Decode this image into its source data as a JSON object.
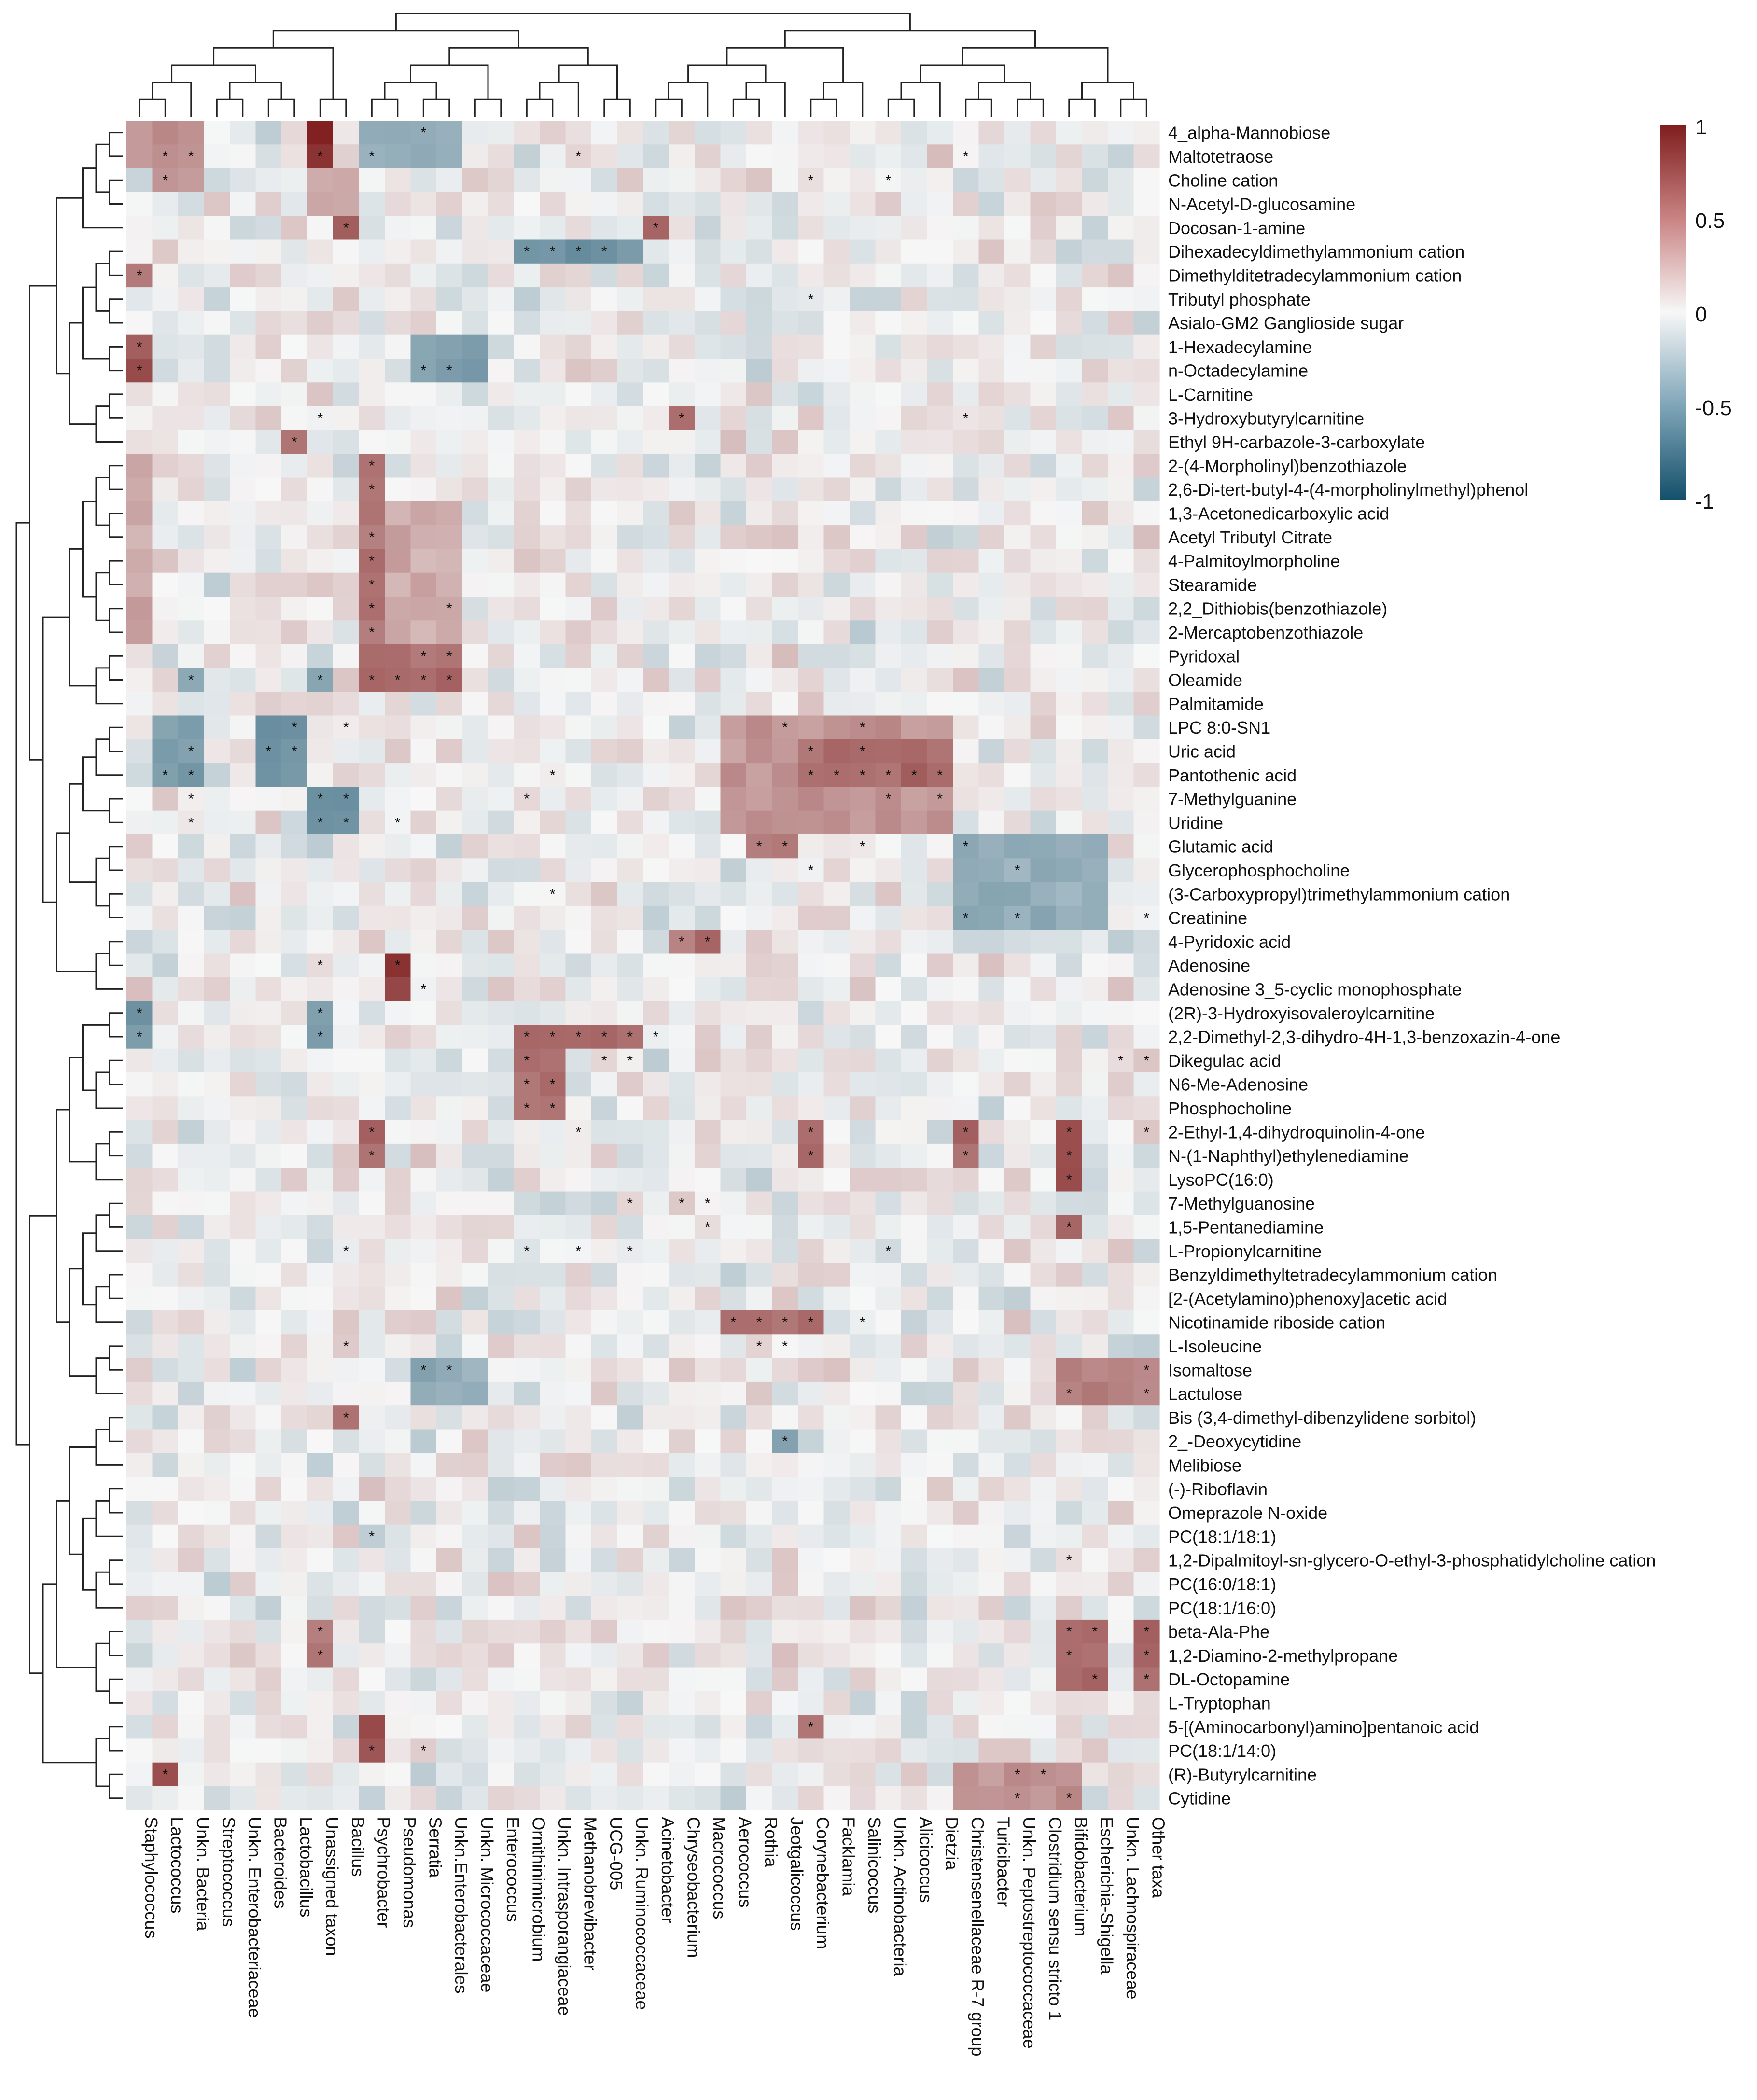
{
  "chart_data": {
    "type": "heatmap",
    "title": "",
    "xlabel": "",
    "ylabel": "",
    "columns": [
      "Staphylococcus",
      "Lactococcus",
      "Unkn. Bacteria",
      "Streptococcus",
      "Unkn. Enterobacteriaceae",
      "Bacteroides",
      "Lactobacillus",
      "Unassigned taxon",
      "Bacillus",
      "Psychrobacter",
      "Pseudomonas",
      "Serratia",
      "Unkn.Enterobacterales",
      "Unkn. Micrococcaceae",
      "Enterococcus",
      "Ornithinimicrobium",
      "Unkn. Intrasporangiaceae",
      "Methanobrevibacter",
      "UCG-005",
      "Unkn. Ruminococcaceae",
      "Acinetobacter",
      "Chryseobacterium",
      "Macrococcus",
      "Aerococcus",
      "Rothia",
      "Jeotgalicoccus",
      "Corynebacterium",
      "Facklamia",
      "Salinicoccus",
      "Unkn. Actinobacteria",
      "Alicicoccus",
      "Dietzia",
      "Christensenellaceae R-7 group",
      "Turicibacter",
      "Unkn. Peptostreptococcaceae",
      "Clostridium sensu stricto 1",
      "Bifidobacterium",
      "Escherichia-Shigella",
      "Unkn. Lachnospiraceae",
      "Other taxa"
    ],
    "rows": [
      "4_alpha-Mannobiose",
      "Maltotetraose",
      "Choline cation",
      "N-Acetyl-D-glucosamine",
      "Docosan-1-amine",
      "Dihexadecyldimethylammonium cation",
      "Dimethylditetradecylammonium cation",
      "Tributyl phosphate",
      "Asialo-GM2 Ganglioside sugar",
      "1-Hexadecylamine",
      "n-Octadecylamine",
      "L-Carnitine",
      "3-Hydroxybutyrylcarnitine",
      "Ethyl 9H-carbazole-3-carboxylate",
      "2-(4-Morpholinyl)benzothiazole",
      "2,6-Di-tert-butyl-4-(4-morpholinylmethyl)phenol",
      "1,3-Acetonedicarboxylic acid",
      "Acetyl Tributyl Citrate",
      "4-Palmitoylmorpholine",
      "Stearamide",
      "2,2_Dithiobis(benzothiazole)",
      "2-Mercaptobenzothiazole",
      "Pyridoxal",
      "Oleamide",
      "Palmitamide",
      "LPC 8:0-SN1",
      "Uric acid",
      "Pantothenic acid",
      "7-Methylguanine",
      "Uridine",
      "Glutamic acid",
      "Glycerophosphocholine",
      "(3-Carboxypropyl)trimethylammonium cation",
      "Creatinine",
      "4-Pyridoxic acid",
      "Adenosine",
      "Adenosine 3_5-cyclic monophosphate",
      "(2R)-3-Hydroxyisovaleroylcarnitine",
      "2,2-Dimethyl-2,3-dihydro-4H-1,3-benzoxazin-4-one",
      "Dikegulac acid",
      "N6-Me-Adenosine",
      "Phosphocholine",
      "2-Ethyl-1,4-dihydroquinolin-4-one",
      "N-(1-Naphthyl)ethylenediamine",
      "LysoPC(16:0)",
      "7-Methylguanosine",
      "1,5-Pentanediamine",
      "L-Propionylcarnitine",
      "Benzyldimethyltetradecylammonium cation",
      "[2-(Acetylamino)phenoxy]acetic acid",
      "Nicotinamide riboside cation",
      "L-Isoleucine",
      "Isomaltose",
      "Lactulose",
      "Bis (3,4-dimethyl-dibenzylidene sorbitol)",
      "2_-Deoxycytidine",
      "Melibiose",
      "(-)-Riboflavin",
      "Omeprazole N-oxide",
      "PC(18:1/18:1)",
      "1,2-Dipalmitoyl-sn-glycero-O-ethyl-3-phosphatidylcholine cation",
      "PC(16:0/18:1)",
      "PC(18:1/16:0)",
      "beta-Ala-Phe",
      "1,2-Diamino-2-methylpropane",
      "DL-Octopamine",
      "L-Tryptophan",
      "5-[(Aminocarbonyl)amino]pentanoic acid",
      "PC(18:1/14:0)",
      "(R)-Butyrylcarnitine",
      "Cytidine"
    ],
    "value_range": [
      -1,
      1
    ],
    "values": "approx. Spearman correlation coefficients (-1 to 1); major blocks encoded below",
    "blocks": [
      {
        "rows": [
          0,
          1
        ],
        "cols": [
          7
        ],
        "value": 0.9
      },
      {
        "rows": [
          0,
          1
        ],
        "cols": [
          0,
          1,
          2
        ],
        "value": 0.45
      },
      {
        "rows": [
          0,
          1
        ],
        "cols": [
          9,
          10,
          11,
          12
        ],
        "value": -0.45
      },
      {
        "rows": [
          2
        ],
        "cols": [
          1,
          2
        ],
        "value": 0.45
      },
      {
        "rows": [
          2,
          3
        ],
        "cols": [
          7,
          8
        ],
        "value": 0.35
      },
      {
        "rows": [
          4
        ],
        "cols": [
          8
        ],
        "value": 0.7
      },
      {
        "rows": [
          4
        ],
        "cols": [
          20
        ],
        "value": 0.6
      },
      {
        "rows": [
          5
        ],
        "cols": [
          15,
          16,
          17,
          18,
          19
        ],
        "value": -0.6
      },
      {
        "rows": [
          6
        ],
        "cols": [
          0
        ],
        "value": 0.6
      },
      {
        "rows": [
          9,
          10
        ],
        "cols": [
          0
        ],
        "value": 0.7
      },
      {
        "rows": [
          9,
          10
        ],
        "cols": [
          11,
          12,
          13
        ],
        "value": -0.5
      },
      {
        "rows": [
          12
        ],
        "cols": [
          21
        ],
        "value": 0.6
      },
      {
        "rows": [
          13
        ],
        "cols": [
          6
        ],
        "value": 0.6
      },
      {
        "rows": [
          14,
          15,
          16,
          17,
          18,
          19,
          20,
          21
        ],
        "cols": [
          9
        ],
        "value": 0.6
      },
      {
        "rows": [
          14,
          15,
          16,
          17,
          18,
          19,
          20,
          21
        ],
        "cols": [
          0
        ],
        "value": 0.35
      },
      {
        "rows": [
          16,
          17,
          18,
          19,
          20,
          21,
          22
        ],
        "cols": [
          10,
          11,
          12
        ],
        "value": 0.35
      },
      {
        "rows": [
          22,
          23
        ],
        "cols": [
          9,
          10,
          11,
          12
        ],
        "value": 0.65
      },
      {
        "rows": [
          23
        ],
        "cols": [
          2,
          7
        ],
        "value": -0.5
      },
      {
        "rows": [
          25,
          26,
          27
        ],
        "cols": [
          1,
          2,
          5,
          6
        ],
        "value": -0.55
      },
      {
        "rows": [
          25,
          26,
          27,
          28,
          29
        ],
        "cols": [
          23,
          24,
          25,
          26,
          27,
          28,
          29,
          30,
          31
        ],
        "value": 0.45
      },
      {
        "rows": [
          26,
          27
        ],
        "cols": [
          26,
          27,
          28,
          29,
          30,
          31
        ],
        "value": 0.65
      },
      {
        "rows": [
          28,
          29
        ],
        "cols": [
          7,
          8
        ],
        "value": -0.6
      },
      {
        "rows": [
          30,
          31,
          32,
          33
        ],
        "cols": [
          32,
          33,
          34,
          35,
          36,
          37
        ],
        "value": -0.45
      },
      {
        "rows": [
          30
        ],
        "cols": [
          24,
          25
        ],
        "value": 0.6
      },
      {
        "rows": [
          34
        ],
        "cols": [
          21,
          22
        ],
        "value": 0.6
      },
      {
        "rows": [
          35,
          36
        ],
        "cols": [
          10
        ],
        "value": 0.85
      },
      {
        "rows": [
          37,
          38
        ],
        "cols": [
          0,
          7
        ],
        "value": -0.55
      },
      {
        "rows": [
          38
        ],
        "cols": [
          15,
          16,
          17,
          18,
          19
        ],
        "value": 0.65
      },
      {
        "rows": [
          39,
          40,
          41
        ],
        "cols": [
          15,
          16
        ],
        "value": 0.6
      },
      {
        "rows": [
          42,
          43,
          44
        ],
        "cols": [
          36
        ],
        "value": 0.75
      },
      {
        "rows": [
          42,
          43
        ],
        "cols": [
          9,
          26,
          32
        ],
        "value": 0.65
      },
      {
        "rows": [
          46
        ],
        "cols": [
          36
        ],
        "value": 0.65
      },
      {
        "rows": [
          50
        ],
        "cols": [
          23,
          24,
          25,
          26
        ],
        "value": 0.65
      },
      {
        "rows": [
          52,
          53
        ],
        "cols": [
          36,
          37,
          38,
          39
        ],
        "value": 0.55
      },
      {
        "rows": [
          52,
          53
        ],
        "cols": [
          11,
          12,
          13
        ],
        "value": -0.45
      },
      {
        "rows": [
          54
        ],
        "cols": [
          8
        ],
        "value": 0.6
      },
      {
        "rows": [
          55
        ],
        "cols": [
          25
        ],
        "value": -0.55
      },
      {
        "rows": [
          63,
          64,
          65
        ],
        "cols": [
          36,
          37,
          39
        ],
        "value": 0.65
      },
      {
        "rows": [
          63,
          64
        ],
        "cols": [
          7
        ],
        "value": 0.55
      },
      {
        "rows": [
          67,
          68
        ],
        "cols": [
          9
        ],
        "value": 0.75
      },
      {
        "rows": [
          67
        ],
        "cols": [
          26
        ],
        "value": 0.6
      },
      {
        "rows": [
          69,
          70
        ],
        "cols": [
          32,
          33,
          34,
          35,
          36
        ],
        "value": 0.45
      },
      {
        "rows": [
          69
        ],
        "cols": [
          1
        ],
        "value": 0.75
      }
    ],
    "significant": [
      [
        0,
        11
      ],
      [
        1,
        1
      ],
      [
        1,
        2
      ],
      [
        1,
        7
      ],
      [
        1,
        9
      ],
      [
        1,
        17
      ],
      [
        1,
        32
      ],
      [
        2,
        1
      ],
      [
        2,
        26
      ],
      [
        2,
        29
      ],
      [
        4,
        8
      ],
      [
        4,
        20
      ],
      [
        5,
        15
      ],
      [
        5,
        16
      ],
      [
        5,
        17
      ],
      [
        5,
        18
      ],
      [
        6,
        0
      ],
      [
        7,
        26
      ],
      [
        9,
        0
      ],
      [
        10,
        0
      ],
      [
        10,
        11
      ],
      [
        10,
        12
      ],
      [
        12,
        7
      ],
      [
        12,
        21
      ],
      [
        12,
        32
      ],
      [
        13,
        6
      ],
      [
        14,
        9
      ],
      [
        15,
        9
      ],
      [
        17,
        9
      ],
      [
        18,
        9
      ],
      [
        19,
        9
      ],
      [
        20,
        9
      ],
      [
        20,
        12
      ],
      [
        21,
        9
      ],
      [
        22,
        11
      ],
      [
        22,
        12
      ],
      [
        23,
        2
      ],
      [
        23,
        7
      ],
      [
        23,
        9
      ],
      [
        23,
        10
      ],
      [
        23,
        11
      ],
      [
        23,
        12
      ],
      [
        25,
        6
      ],
      [
        25,
        8
      ],
      [
        25,
        25
      ],
      [
        25,
        28
      ],
      [
        26,
        2
      ],
      [
        26,
        5
      ],
      [
        26,
        6
      ],
      [
        26,
        26
      ],
      [
        26,
        28
      ],
      [
        27,
        1
      ],
      [
        27,
        2
      ],
      [
        27,
        16
      ],
      [
        27,
        26
      ],
      [
        27,
        27
      ],
      [
        27,
        28
      ],
      [
        27,
        29
      ],
      [
        27,
        30
      ],
      [
        27,
        31
      ],
      [
        28,
        2
      ],
      [
        28,
        7
      ],
      [
        28,
        8
      ],
      [
        28,
        15
      ],
      [
        28,
        29
      ],
      [
        28,
        31
      ],
      [
        29,
        2
      ],
      [
        29,
        7
      ],
      [
        29,
        8
      ],
      [
        29,
        10
      ],
      [
        30,
        24
      ],
      [
        30,
        25
      ],
      [
        30,
        28
      ],
      [
        30,
        32
      ],
      [
        31,
        26
      ],
      [
        31,
        34
      ],
      [
        32,
        16
      ],
      [
        33,
        32
      ],
      [
        33,
        34
      ],
      [
        33,
        39
      ],
      [
        34,
        21
      ],
      [
        34,
        22
      ],
      [
        35,
        7
      ],
      [
        35,
        10
      ],
      [
        36,
        11
      ],
      [
        37,
        0
      ],
      [
        37,
        7
      ],
      [
        38,
        0
      ],
      [
        38,
        7
      ],
      [
        38,
        15
      ],
      [
        38,
        16
      ],
      [
        38,
        17
      ],
      [
        38,
        18
      ],
      [
        38,
        19
      ],
      [
        38,
        20
      ],
      [
        39,
        15
      ],
      [
        39,
        18
      ],
      [
        39,
        19
      ],
      [
        39,
        38
      ],
      [
        39,
        39
      ],
      [
        40,
        15
      ],
      [
        40,
        16
      ],
      [
        41,
        15
      ],
      [
        41,
        16
      ],
      [
        42,
        9
      ],
      [
        42,
        17
      ],
      [
        42,
        26
      ],
      [
        42,
        32
      ],
      [
        42,
        36
      ],
      [
        42,
        39
      ],
      [
        43,
        9
      ],
      [
        43,
        26
      ],
      [
        43,
        32
      ],
      [
        43,
        36
      ],
      [
        44,
        36
      ],
      [
        45,
        19
      ],
      [
        45,
        21
      ],
      [
        45,
        22
      ],
      [
        46,
        22
      ],
      [
        46,
        36
      ],
      [
        47,
        8
      ],
      [
        47,
        15
      ],
      [
        47,
        17
      ],
      [
        47,
        19
      ],
      [
        47,
        29
      ],
      [
        50,
        23
      ],
      [
        50,
        24
      ],
      [
        50,
        25
      ],
      [
        50,
        26
      ],
      [
        50,
        28
      ],
      [
        51,
        8
      ],
      [
        51,
        24
      ],
      [
        51,
        25
      ],
      [
        52,
        11
      ],
      [
        52,
        12
      ],
      [
        52,
        39
      ],
      [
        53,
        36
      ],
      [
        53,
        39
      ],
      [
        54,
        8
      ],
      [
        55,
        25
      ],
      [
        59,
        9
      ],
      [
        60,
        36
      ],
      [
        63,
        7
      ],
      [
        63,
        36
      ],
      [
        63,
        37
      ],
      [
        63,
        39
      ],
      [
        64,
        7
      ],
      [
        64,
        36
      ],
      [
        64,
        39
      ],
      [
        65,
        37
      ],
      [
        65,
        39
      ],
      [
        67,
        26
      ],
      [
        68,
        9
      ],
      [
        68,
        11
      ],
      [
        69,
        1
      ],
      [
        69,
        34
      ],
      [
        69,
        35
      ],
      [
        70,
        34
      ],
      [
        70,
        36
      ]
    ],
    "legend": {
      "title": "",
      "position": "top-right",
      "ticks": [
        "1",
        "0.5",
        "0",
        "-0.5",
        "-1"
      ],
      "tick_values": [
        1,
        0.5,
        0,
        -0.5,
        -1
      ],
      "colors": {
        "high": "#7f1d1d",
        "mid": "#f7f7f7",
        "low": "#15506b"
      }
    }
  }
}
